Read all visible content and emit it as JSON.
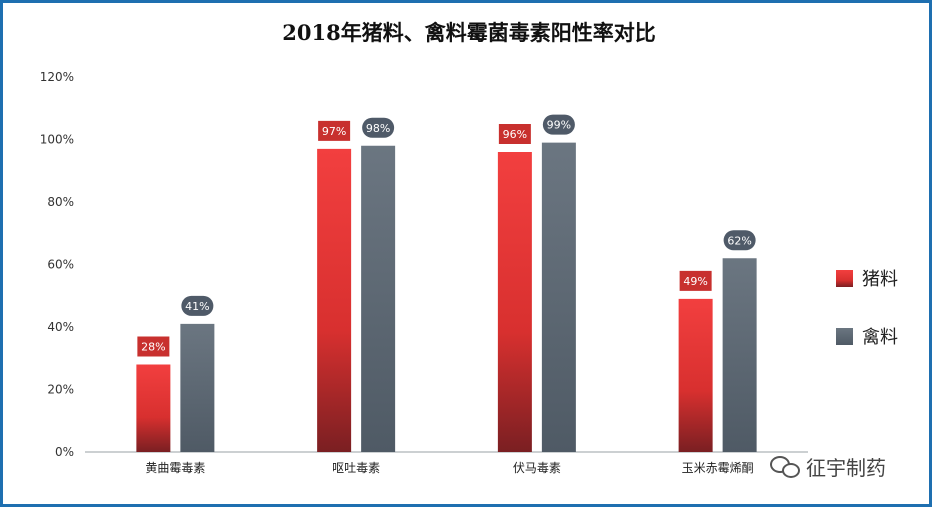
{
  "title": "2018年猪料、禽料霉菌毒素阳性率对比",
  "watermark": "征宇制药",
  "colors": {
    "series_1": "#e8393a",
    "series_2": "#5a6672",
    "frame": "#1e6fb0"
  },
  "chart_data": {
    "type": "bar",
    "title": "2018年猪料、禽料霉菌毒素阳性率对比",
    "categories": [
      "黄曲霉毒素",
      "呕吐毒素",
      "伏马毒素",
      "玉米赤霉烯酮"
    ],
    "series": [
      {
        "name": "猪料",
        "values": [
          28,
          97,
          96,
          49
        ],
        "labels": [
          "28%",
          "97%",
          "96%",
          "49%"
        ]
      },
      {
        "name": "禽料",
        "values": [
          41,
          98,
          99,
          62
        ],
        "labels": [
          "41%",
          "98%",
          "99%",
          "62%"
        ]
      }
    ],
    "ylim": [
      0,
      120
    ],
    "yticks": [
      "0%",
      "20%",
      "40%",
      "60%",
      "80%",
      "100%",
      "120%"
    ],
    "legend_position": "right",
    "grid": false
  }
}
